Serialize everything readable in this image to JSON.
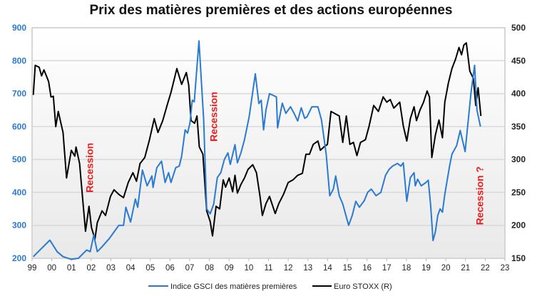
{
  "chart_data": {
    "type": "line",
    "title": "Prix des matières premières et des actions européennes",
    "x_ticks": [
      "99",
      "00",
      "01",
      "02",
      "03",
      "04",
      "05",
      "06",
      "07",
      "08",
      "09",
      "10",
      "11",
      "12",
      "13",
      "14",
      "15",
      "16",
      "17",
      "18",
      "19",
      "20",
      "21",
      "22",
      "23"
    ],
    "xlim": [
      1999,
      2023
    ],
    "y_left": {
      "ylim": [
        200,
        900
      ],
      "ticks": [
        "200",
        "300",
        "400",
        "500",
        "600",
        "700",
        "800",
        "900"
      ],
      "color": "#2a7ad2"
    },
    "y_right": {
      "ylim": [
        150,
        500
      ],
      "ticks": [
        "150",
        "200",
        "250",
        "300",
        "350",
        "400",
        "450",
        "500"
      ],
      "color": "#222222"
    },
    "grid": true,
    "legend_position": "bottom",
    "annotations": [
      {
        "text": "Recession",
        "x": 2002.1,
        "y_left": 475
      },
      {
        "text": "Recession",
        "x": 2008.4,
        "y_left": 630
      },
      {
        "text": "Recession ?",
        "x": 2021.9,
        "y_left": 390
      }
    ],
    "series": [
      {
        "name": "Indice GSCI des matières premières",
        "axis": "left",
        "color": "#2a7ad2",
        "points": [
          [
            1999.06,
            205
          ],
          [
            1999.48,
            230
          ],
          [
            1999.9,
            255
          ],
          [
            2000.27,
            220
          ],
          [
            2000.57,
            205
          ],
          [
            2000.99,
            197
          ],
          [
            2001.35,
            200
          ],
          [
            2001.77,
            225
          ],
          [
            2001.95,
            220
          ],
          [
            2002.13,
            270
          ],
          [
            2002.31,
            220
          ],
          [
            2002.55,
            235
          ],
          [
            2002.92,
            260
          ],
          [
            2003.16,
            280
          ],
          [
            2003.4,
            300
          ],
          [
            2003.64,
            300
          ],
          [
            2003.76,
            355
          ],
          [
            2004.0,
            310
          ],
          [
            2004.24,
            380
          ],
          [
            2004.36,
            355
          ],
          [
            2004.6,
            468
          ],
          [
            2004.84,
            420
          ],
          [
            2005.08,
            450
          ],
          [
            2005.14,
            415
          ],
          [
            2005.33,
            475
          ],
          [
            2005.57,
            495
          ],
          [
            2005.75,
            430
          ],
          [
            2005.93,
            460
          ],
          [
            2006.05,
            430
          ],
          [
            2006.29,
            475
          ],
          [
            2006.47,
            480
          ],
          [
            2006.59,
            510
          ],
          [
            2006.77,
            590
          ],
          [
            2006.89,
            580
          ],
          [
            2007.01,
            610
          ],
          [
            2007.13,
            680
          ],
          [
            2007.23,
            675
          ],
          [
            2007.47,
            860
          ],
          [
            2007.71,
            620
          ],
          [
            2007.86,
            350
          ],
          [
            2008.04,
            335
          ],
          [
            2008.22,
            365
          ],
          [
            2008.4,
            445
          ],
          [
            2008.58,
            460
          ],
          [
            2008.76,
            500
          ],
          [
            2008.94,
            520
          ],
          [
            2009.06,
            485
          ],
          [
            2009.3,
            545
          ],
          [
            2009.42,
            490
          ],
          [
            2009.6,
            520
          ],
          [
            2009.78,
            560
          ],
          [
            2010.02,
            630
          ],
          [
            2010.33,
            760
          ],
          [
            2010.51,
            670
          ],
          [
            2010.63,
            680
          ],
          [
            2010.75,
            590
          ],
          [
            2010.87,
            650
          ],
          [
            2011.05,
            700
          ],
          [
            2011.4,
            690
          ],
          [
            2011.46,
            596
          ],
          [
            2011.7,
            671
          ],
          [
            2011.88,
            640
          ],
          [
            2012.12,
            660
          ],
          [
            2012.3,
            640
          ],
          [
            2012.48,
            617
          ],
          [
            2012.66,
            657
          ],
          [
            2012.84,
            625
          ],
          [
            2012.96,
            630
          ],
          [
            2013.2,
            660
          ],
          [
            2013.51,
            660
          ],
          [
            2013.69,
            620
          ],
          [
            2013.93,
            516
          ],
          [
            2014.11,
            390
          ],
          [
            2014.29,
            410
          ],
          [
            2014.41,
            450
          ],
          [
            2014.59,
            390
          ],
          [
            2014.77,
            365
          ],
          [
            2015.07,
            300
          ],
          [
            2015.25,
            330
          ],
          [
            2015.43,
            373
          ],
          [
            2015.61,
            355
          ],
          [
            2015.86,
            375
          ],
          [
            2016.04,
            401
          ],
          [
            2016.22,
            410
          ],
          [
            2016.46,
            390
          ],
          [
            2016.7,
            400
          ],
          [
            2016.94,
            452
          ],
          [
            2017.12,
            470
          ],
          [
            2017.3,
            480
          ],
          [
            2017.54,
            488
          ],
          [
            2017.72,
            480
          ],
          [
            2017.84,
            490
          ],
          [
            2018.02,
            373
          ],
          [
            2018.2,
            445
          ],
          [
            2018.39,
            460
          ],
          [
            2018.45,
            420
          ],
          [
            2018.57,
            440
          ],
          [
            2018.75,
            420
          ],
          [
            2018.99,
            430
          ],
          [
            2019.11,
            437
          ],
          [
            2019.23,
            360
          ],
          [
            2019.35,
            254
          ],
          [
            2019.47,
            280
          ],
          [
            2019.59,
            330
          ],
          [
            2019.71,
            350
          ],
          [
            2019.83,
            340
          ],
          [
            2019.95,
            394
          ],
          [
            2020.19,
            480
          ],
          [
            2020.31,
            516
          ],
          [
            2020.55,
            542
          ],
          [
            2020.73,
            588
          ],
          [
            2020.98,
            524
          ],
          [
            2021.28,
            704
          ],
          [
            2021.46,
            786
          ],
          [
            2021.58,
            650
          ],
          [
            2021.76,
            600
          ]
        ]
      },
      {
        "name": "Euro STOXX (R)",
        "axis": "right",
        "color": "#000000",
        "points": [
          [
            1999.06,
            398
          ],
          [
            1999.16,
            443
          ],
          [
            1999.36,
            440
          ],
          [
            1999.48,
            427
          ],
          [
            1999.6,
            436
          ],
          [
            1999.78,
            423
          ],
          [
            1999.84,
            418
          ],
          [
            1999.96,
            395
          ],
          [
            2000.08,
            396
          ],
          [
            2000.2,
            350
          ],
          [
            2000.33,
            373
          ],
          [
            2000.57,
            341
          ],
          [
            2000.75,
            272
          ],
          [
            2000.99,
            314
          ],
          [
            2001.17,
            305
          ],
          [
            2001.23,
            319
          ],
          [
            2001.41,
            294
          ],
          [
            2001.59,
            233
          ],
          [
            2001.71,
            191
          ],
          [
            2001.89,
            229
          ],
          [
            2002.01,
            197
          ],
          [
            2002.19,
            179
          ],
          [
            2002.31,
            204
          ],
          [
            2002.55,
            222
          ],
          [
            2002.73,
            215
          ],
          [
            2002.98,
            244
          ],
          [
            2003.16,
            254
          ],
          [
            2003.4,
            247
          ],
          [
            2003.64,
            242
          ],
          [
            2003.88,
            265
          ],
          [
            2004.12,
            280
          ],
          [
            2004.3,
            267
          ],
          [
            2004.48,
            294
          ],
          [
            2004.72,
            303
          ],
          [
            2004.96,
            330
          ],
          [
            2005.2,
            362
          ],
          [
            2005.39,
            341
          ],
          [
            2005.63,
            359
          ],
          [
            2005.87,
            384
          ],
          [
            2006.05,
            402
          ],
          [
            2006.35,
            438
          ],
          [
            2006.59,
            414
          ],
          [
            2006.83,
            432
          ],
          [
            2006.95,
            413
          ],
          [
            2007.07,
            359
          ],
          [
            2007.25,
            355
          ],
          [
            2007.37,
            366
          ],
          [
            2007.49,
            319
          ],
          [
            2007.67,
            308
          ],
          [
            2007.86,
            222
          ],
          [
            2008.04,
            206
          ],
          [
            2008.16,
            184
          ],
          [
            2008.34,
            229
          ],
          [
            2008.52,
            225
          ],
          [
            2008.7,
            269
          ],
          [
            2008.82,
            258
          ],
          [
            2009.0,
            272
          ],
          [
            2009.18,
            251
          ],
          [
            2009.3,
            276
          ],
          [
            2009.42,
            249
          ],
          [
            2009.6,
            262
          ],
          [
            2009.78,
            272
          ],
          [
            2009.96,
            285
          ],
          [
            2010.2,
            292
          ],
          [
            2010.39,
            280
          ],
          [
            2010.57,
            244
          ],
          [
            2010.69,
            215
          ],
          [
            2010.87,
            233
          ],
          [
            2011.05,
            244
          ],
          [
            2011.34,
            218
          ],
          [
            2011.52,
            233
          ],
          [
            2011.76,
            247
          ],
          [
            2012.0,
            265
          ],
          [
            2012.24,
            269
          ],
          [
            2012.48,
            276
          ],
          [
            2012.72,
            279
          ],
          [
            2012.9,
            308
          ],
          [
            2013.08,
            308
          ],
          [
            2013.27,
            323
          ],
          [
            2013.51,
            328
          ],
          [
            2013.63,
            314
          ],
          [
            2013.81,
            319
          ],
          [
            2013.99,
            323
          ],
          [
            2014.17,
            373
          ],
          [
            2014.41,
            369
          ],
          [
            2014.59,
            366
          ],
          [
            2014.77,
            326
          ],
          [
            2014.95,
            366
          ],
          [
            2015.13,
            323
          ],
          [
            2015.31,
            326
          ],
          [
            2015.49,
            306
          ],
          [
            2015.67,
            326
          ],
          [
            2015.92,
            330
          ],
          [
            2016.1,
            350
          ],
          [
            2016.34,
            382
          ],
          [
            2016.58,
            373
          ],
          [
            2016.82,
            395
          ],
          [
            2017.0,
            387
          ],
          [
            2017.18,
            391
          ],
          [
            2017.36,
            378
          ],
          [
            2017.66,
            387
          ],
          [
            2017.84,
            351
          ],
          [
            2018.02,
            328
          ],
          [
            2018.2,
            362
          ],
          [
            2018.39,
            380
          ],
          [
            2018.51,
            359
          ],
          [
            2018.69,
            375
          ],
          [
            2018.87,
            387
          ],
          [
            2019.05,
            404
          ],
          [
            2019.17,
            395
          ],
          [
            2019.29,
            303
          ],
          [
            2019.47,
            337
          ],
          [
            2019.65,
            360
          ],
          [
            2019.83,
            333
          ],
          [
            2019.95,
            387
          ],
          [
            2020.13,
            416
          ],
          [
            2020.31,
            438
          ],
          [
            2020.49,
            452
          ],
          [
            2020.67,
            470
          ],
          [
            2020.8,
            459
          ],
          [
            2020.92,
            474
          ],
          [
            2021.04,
            477
          ],
          [
            2021.22,
            434
          ],
          [
            2021.4,
            423
          ],
          [
            2021.52,
            382
          ],
          [
            2021.64,
            409
          ],
          [
            2021.78,
            366
          ]
        ]
      }
    ]
  }
}
